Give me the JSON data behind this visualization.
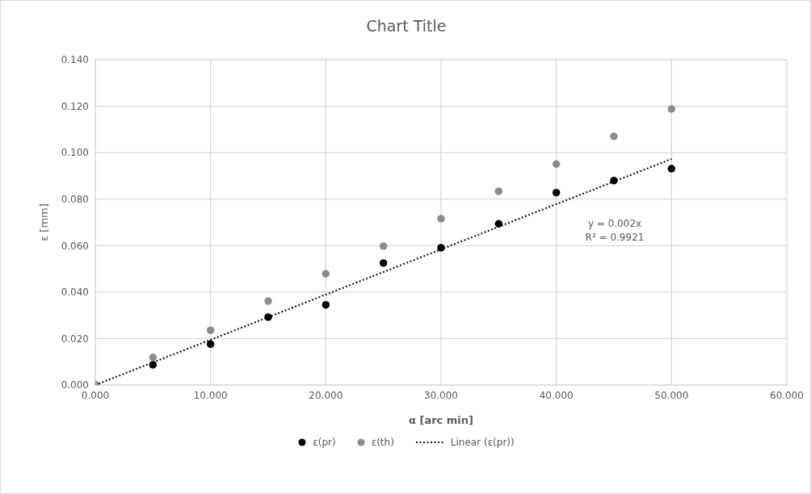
{
  "chart_data": {
    "type": "scatter",
    "title": "Chart Title",
    "xlabel": "α [arc min]",
    "ylabel": "ε [mm]",
    "x": [
      0,
      5,
      10,
      15,
      20,
      25,
      30,
      35,
      40,
      45,
      50
    ],
    "series": [
      {
        "name": "ε(pr)",
        "color": "#000000",
        "values": [
          0,
          0.0087,
          0.0176,
          0.0292,
          0.0345,
          0.0525,
          0.0591,
          0.0694,
          0.0828,
          0.088,
          0.0931
        ]
      },
      {
        "name": "ε(th)",
        "color": "#8c8c8c",
        "values": [
          0,
          0.0119,
          0.0236,
          0.0361,
          0.0479,
          0.0598,
          0.0716,
          0.0834,
          0.0951,
          0.107,
          0.1188
        ]
      },
      {
        "name": "Linear (ε(pr))",
        "type": "line",
        "color": "#1a1a1a",
        "x": [
          0,
          50
        ],
        "values": [
          0,
          0.0973
        ],
        "line_style": "dotted",
        "marker": "none"
      }
    ],
    "xlim": [
      0,
      60
    ],
    "xticks": [
      {
        "value": 0,
        "label": "0.000"
      },
      {
        "value": 10,
        "label": "10.000"
      },
      {
        "value": 20,
        "label": "20.000"
      },
      {
        "value": 30,
        "label": "30.000"
      },
      {
        "value": 40,
        "label": "40.000"
      },
      {
        "value": 50,
        "label": "50.000"
      },
      {
        "value": 60,
        "label": "60.000"
      }
    ],
    "ylim": [
      0,
      0.14
    ],
    "yticks": [
      {
        "value": 0,
        "label": "0.000"
      },
      {
        "value": 0.02,
        "label": "0.020"
      },
      {
        "value": 0.04,
        "label": "0.040"
      },
      {
        "value": 0.06,
        "label": "0.060"
      },
      {
        "value": 0.08,
        "label": "0.080"
      },
      {
        "value": 0.1,
        "label": "0.100"
      },
      {
        "value": 0.12,
        "label": "0.120"
      },
      {
        "value": 0.14,
        "label": "0.140"
      }
    ],
    "annotations": [
      "y = 0.002x",
      "R² = 0.9921"
    ],
    "grid": true,
    "legend": "bottom",
    "marker": "circle"
  }
}
